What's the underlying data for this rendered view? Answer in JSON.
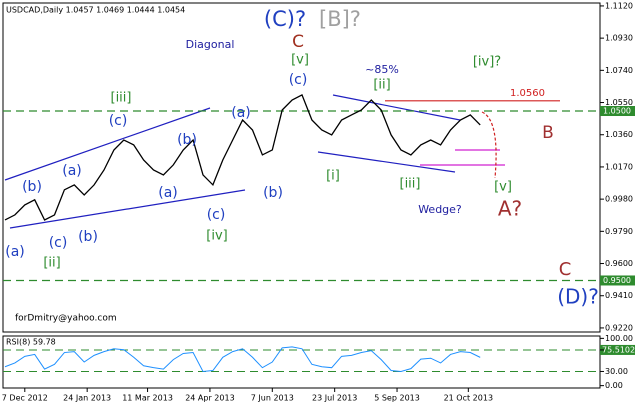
{
  "chart_data": {
    "type": "line",
    "title": "USDCAD,Daily  1.0457 1.0469 1.0444 1.0454",
    "values": [
      0.9857,
      0.9887,
      0.9946,
      0.9976,
      0.9857,
      0.9887,
      1.0035,
      1.0064,
      1.0005,
      1.0064,
      1.0152,
      1.027,
      1.0329,
      1.03,
      1.0211,
      1.0152,
      1.0123,
      1.0182,
      1.027,
      1.0329,
      1.0123,
      1.0064,
      1.0211,
      1.0329,
      1.0447,
      1.0388,
      1.0241,
      1.027,
      1.0506,
      1.0565,
      1.0595,
      1.0447,
      1.0388,
      1.0359,
      1.0447,
      1.0477,
      1.0506,
      1.0565,
      1.0506,
      1.0359,
      1.027,
      1.0241,
      1.03,
      1.0329,
      1.03,
      1.0388,
      1.0447,
      1.0477,
      1.0418
    ],
    "color": "#000000",
    "xlim": [
      0,
      60
    ],
    "xticks": [
      {
        "value": 2,
        "label": "7 Dec 2012"
      },
      {
        "value": 8.3,
        "label": "24 Jan 2013"
      },
      {
        "value": 14.4,
        "label": "11 Mar 2013"
      },
      {
        "value": 20.7,
        "label": "24 Apr 2013"
      },
      {
        "value": 27,
        "label": "7 Jun 2013"
      },
      {
        "value": 33.3,
        "label": "23 Jul 2013"
      },
      {
        "value": 39.6,
        "label": "5 Sep 2013"
      },
      {
        "value": 46.8,
        "label": "21 Oct 2013"
      }
    ],
    "ylim": [
      0.9196,
      1.1155
    ],
    "yticks": [
      {
        "value": 1.112,
        "label": "1.1120"
      },
      {
        "value": 1.093,
        "label": "1.0930"
      },
      {
        "value": 1.074,
        "label": "1.0740"
      },
      {
        "value": 1.055,
        "label": "1.0550"
      },
      {
        "value": 1.036,
        "label": "1.0360"
      },
      {
        "value": 1.017,
        "label": "1.0170"
      },
      {
        "value": 0.998,
        "label": "0.9980"
      },
      {
        "value": 0.979,
        "label": "0.9790"
      },
      {
        "value": 0.96,
        "label": "0.9600"
      },
      {
        "value": 0.941,
        "label": "0.9410"
      },
      {
        "value": 0.922,
        "label": "0.9220"
      }
    ],
    "levels": [
      {
        "value": 1.05,
        "label": "1.0500",
        "color": "#2e8b2e"
      },
      {
        "value": 0.95,
        "label": "0.9500",
        "color": "#2e8b2e"
      },
      {
        "value": 1.056,
        "label": "1.0560",
        "color": "#d02020"
      }
    ],
    "annotations": [
      {
        "text": "Diagonal",
        "color": "#2020a0"
      },
      {
        "text": "(C)?",
        "color": "#2040c0"
      },
      {
        "text": "[B]?",
        "color": "#a0a0a0"
      },
      {
        "text": "C",
        "color": "#a03020"
      },
      {
        "text": "[v]",
        "color": "#2e8b2e"
      },
      {
        "text": "(c)",
        "color": "#2040c0"
      },
      {
        "text": "~85%",
        "color": "#2020a0"
      },
      {
        "text": "[ii]",
        "color": "#2e8b2e"
      },
      {
        "text": "[iv]?",
        "color": "#2e8b2e"
      },
      {
        "text": "B",
        "color": "#a03030"
      },
      {
        "text": "(a)",
        "color": "#2040c0"
      },
      {
        "text": "(b)",
        "color": "#2040c0"
      },
      {
        "text": "(a)",
        "color": "#2040c0"
      },
      {
        "text": "(c)",
        "color": "#2040c0"
      },
      {
        "text": "[iii]",
        "color": "#2e8b2e"
      },
      {
        "text": "(a)",
        "color": "#2040c0"
      },
      {
        "text": "(b)",
        "color": "#2040c0"
      },
      {
        "text": "(c)",
        "color": "#2040c0"
      },
      {
        "text": "[ii]",
        "color": "#2e8b2e"
      },
      {
        "text": "(b)",
        "color": "#2040c0"
      },
      {
        "text": "(a)",
        "color": "#2040c0"
      },
      {
        "text": "(c)",
        "color": "#2040c0"
      },
      {
        "text": "[iv]",
        "color": "#2e8b2e"
      },
      {
        "text": "(b)",
        "color": "#2040c0"
      },
      {
        "text": "[i]",
        "color": "#2e8b2e"
      },
      {
        "text": "[iii]",
        "color": "#2e8b2e"
      },
      {
        "text": "[v]",
        "color": "#2e8b2e"
      },
      {
        "text": "Wedge?",
        "color": "#2020a0"
      },
      {
        "text": "A?",
        "color": "#a03030"
      },
      {
        "text": "C",
        "color": "#a03030"
      },
      {
        "text": "(D)?",
        "color": "#2040c0"
      },
      {
        "text": "forDmitry@yahoo.com",
        "color": "#000000"
      }
    ],
    "rsi": {
      "title": "RSI(8) 59.78",
      "color": "#1e90ff",
      "values": [
        40,
        48,
        62,
        66,
        35,
        45,
        70,
        72,
        50,
        64,
        72,
        78,
        76,
        60,
        42,
        38,
        35,
        55,
        68,
        70,
        30,
        32,
        60,
        72,
        78,
        60,
        38,
        50,
        80,
        82,
        78,
        45,
        40,
        38,
        62,
        64,
        70,
        74,
        55,
        32,
        30,
        36,
        56,
        58,
        48,
        66,
        72,
        70,
        59.78
      ],
      "ylim": [
        -5,
        105
      ],
      "yticks": [
        {
          "value": 100,
          "label": "100.00"
        },
        {
          "value": 75.5102,
          "label": "75.5102"
        },
        {
          "value": 30,
          "label": "30.00"
        },
        {
          "value": 0,
          "label": "0.00"
        }
      ]
    }
  }
}
